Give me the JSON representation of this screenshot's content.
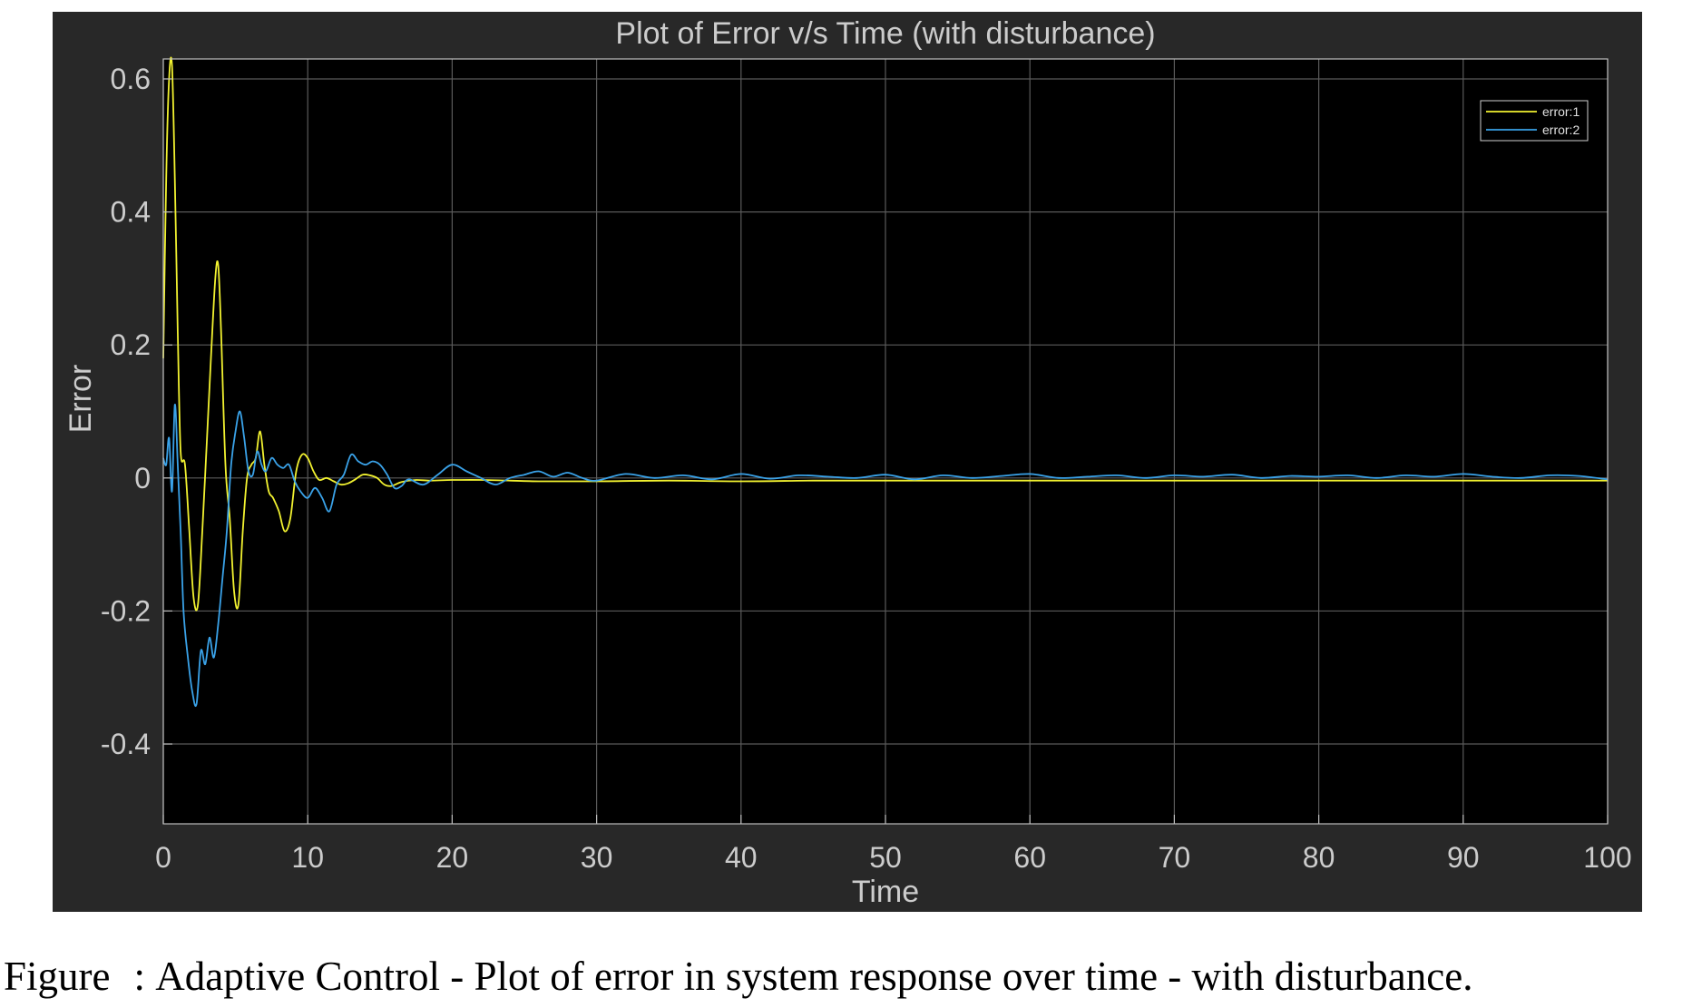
{
  "figure": {
    "background": "#282828",
    "plot_background": "#000000",
    "grid_color": "#5a5a5a",
    "text_color": "#cccccc"
  },
  "caption": {
    "prefix": "Figure",
    "separator": ":",
    "text": "Adaptive Control - Plot of error in system response over time - with disturbance."
  },
  "chart_data": {
    "type": "line",
    "title": "Plot of Error v/s Time (with disturbance)",
    "xlabel": "Time",
    "ylabel": "Error",
    "xlim": [
      0,
      100
    ],
    "ylim": [
      -0.52,
      0.63
    ],
    "xticks": [
      0,
      10,
      20,
      30,
      40,
      50,
      60,
      70,
      80,
      90,
      100
    ],
    "xtick_labels": [
      "0",
      "10",
      "20",
      "30",
      "40",
      "50",
      "60",
      "70",
      "80",
      "90",
      "100"
    ],
    "yticks": [
      -0.4,
      -0.2,
      0,
      0.2,
      0.4,
      0.6
    ],
    "ytick_labels": [
      "-0.4",
      "-0.2",
      "0",
      "0.2",
      "0.4",
      "0.6"
    ],
    "grid": true,
    "legend_position": "top-right",
    "series": [
      {
        "name": "error:1",
        "color": "#f2f230",
        "x": [
          0,
          0.2,
          0.4,
          0.6,
          0.8,
          1.0,
          1.2,
          1.5,
          1.8,
          2.1,
          2.4,
          2.7,
          3.0,
          3.3,
          3.6,
          3.8,
          4.0,
          4.3,
          4.6,
          4.9,
          5.2,
          5.5,
          5.8,
          6.1,
          6.4,
          6.7,
          7.0,
          7.3,
          7.6,
          8.0,
          8.4,
          8.8,
          9.2,
          9.6,
          10.0,
          10.4,
          10.8,
          11.3,
          11.8,
          12.3,
          12.8,
          13.3,
          13.8,
          14.3,
          14.8,
          15.3,
          15.8,
          16.5,
          17.5,
          18.5,
          20,
          22,
          24,
          26,
          28,
          30,
          35,
          40,
          45,
          50,
          55,
          60,
          65,
          70,
          75,
          80,
          85,
          90,
          95,
          100
        ],
        "values": [
          0.18,
          0.45,
          0.6,
          0.62,
          0.45,
          0.22,
          0.04,
          0.02,
          -0.08,
          -0.18,
          -0.19,
          -0.08,
          0.05,
          0.18,
          0.3,
          0.32,
          0.22,
          0.02,
          -0.06,
          -0.17,
          -0.19,
          -0.08,
          0.0,
          0.02,
          0.03,
          0.07,
          0.02,
          -0.02,
          -0.03,
          -0.05,
          -0.08,
          -0.06,
          0.01,
          0.035,
          0.03,
          0.01,
          -0.003,
          0.0,
          -0.005,
          -0.01,
          -0.008,
          -0.002,
          0.005,
          0.004,
          0.0,
          -0.01,
          -0.012,
          -0.006,
          -0.003,
          -0.004,
          -0.003,
          -0.003,
          -0.004,
          -0.005,
          -0.005,
          -0.005,
          -0.004,
          -0.005,
          -0.004,
          -0.004,
          -0.004,
          -0.004,
          -0.004,
          -0.004,
          -0.004,
          -0.004,
          -0.004,
          -0.004,
          -0.004,
          -0.004
        ]
      },
      {
        "name": "error:2",
        "color": "#3aa2e8",
        "x": [
          0,
          0.2,
          0.4,
          0.6,
          0.8,
          1.0,
          1.2,
          1.4,
          1.7,
          2.0,
          2.3,
          2.6,
          2.9,
          3.2,
          3.5,
          3.8,
          4.1,
          4.4,
          4.7,
          5.0,
          5.3,
          5.6,
          5.9,
          6.2,
          6.5,
          6.8,
          7.1,
          7.5,
          7.9,
          8.3,
          8.7,
          9.1,
          9.5,
          10.0,
          10.5,
          11.0,
          11.5,
          12.0,
          12.5,
          13.0,
          13.5,
          14.0,
          14.5,
          15.0,
          15.5,
          16.0,
          16.5,
          17.0,
          18.0,
          19.0,
          20.0,
          21.0,
          22.0,
          23.0,
          24.0,
          25.0,
          26.0,
          27.0,
          28.0,
          29.0,
          30.0,
          32,
          34,
          36,
          38,
          40,
          42,
          44,
          46,
          48,
          50,
          52,
          54,
          56,
          58,
          60,
          62,
          64,
          66,
          68,
          70,
          72,
          74,
          76,
          78,
          80,
          82,
          84,
          86,
          88,
          90,
          92,
          94,
          96,
          98,
          100
        ],
        "values": [
          0.03,
          0.02,
          0.06,
          -0.02,
          0.11,
          0.02,
          -0.08,
          -0.2,
          -0.27,
          -0.32,
          -0.34,
          -0.26,
          -0.28,
          -0.24,
          -0.27,
          -0.22,
          -0.15,
          -0.08,
          0.02,
          0.07,
          0.1,
          0.06,
          0.01,
          0.005,
          0.04,
          0.02,
          0.01,
          0.03,
          0.02,
          0.015,
          0.02,
          -0.005,
          -0.02,
          -0.03,
          -0.015,
          -0.03,
          -0.05,
          -0.01,
          0.005,
          0.035,
          0.025,
          0.02,
          0.025,
          0.02,
          0.005,
          -0.015,
          -0.012,
          -0.002,
          -0.01,
          0.005,
          0.02,
          0.01,
          0.0,
          -0.01,
          0.0,
          0.005,
          0.01,
          0.002,
          0.008,
          0.0,
          -0.004,
          0.006,
          0.0,
          0.004,
          -0.002,
          0.006,
          -0.001,
          0.004,
          0.002,
          0.0,
          0.005,
          -0.002,
          0.004,
          0.0,
          0.003,
          0.006,
          0.0,
          0.002,
          0.004,
          0.0,
          0.004,
          0.002,
          0.005,
          0.0,
          0.003,
          0.002,
          0.004,
          0.0,
          0.004,
          0.002,
          0.006,
          0.002,
          0.0,
          0.004,
          0.003,
          -0.002
        ]
      }
    ]
  }
}
